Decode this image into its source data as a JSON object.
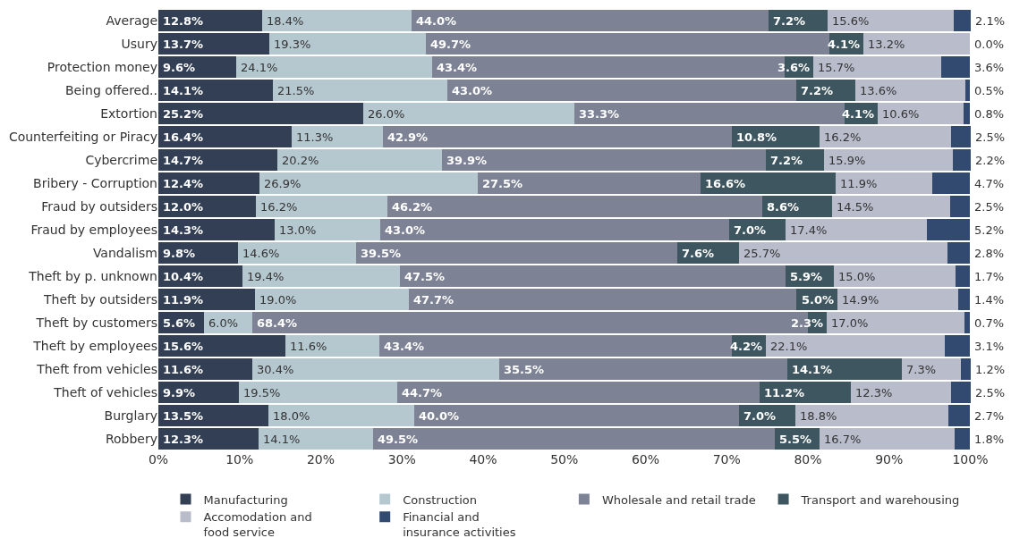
{
  "chart_data": {
    "type": "bar",
    "orientation": "horizontal",
    "stacked": true,
    "categories": [
      "Average",
      "Usury",
      "Protection money",
      "Being offered..",
      "Extortion",
      "Counterfeiting or Piracy",
      "Cybercrime",
      "Bribery - Corruption",
      "Fraud by outsiders",
      "Fraud by employees",
      "Vandalism",
      "Theft by p. unknown",
      "Theft by outsiders",
      "Theft by customers",
      "Theft by employees",
      "Theft from vehicles",
      "Theft of vehicles",
      "Burglary",
      "Robbery"
    ],
    "series": [
      {
        "name": "Manufacturing",
        "color": "#333f55",
        "values": [
          12.8,
          13.7,
          9.6,
          14.1,
          25.2,
          16.4,
          14.7,
          12.4,
          12.0,
          14.3,
          9.8,
          10.4,
          11.9,
          5.6,
          15.6,
          11.6,
          9.9,
          13.5,
          12.3
        ],
        "value_labels": [
          "12.8%",
          "13.7%",
          "9.6%",
          "14.1%",
          "25.2%",
          "16.4%",
          "14.7%",
          "12.4%",
          "12.0%",
          "14.3%",
          "9.8%",
          "10.4%",
          "11.9%",
          "5.6%",
          "15.6%",
          "11.6%",
          "9.9%",
          "13.5%",
          "12.3%"
        ]
      },
      {
        "name": "Construction",
        "color": "#b5c7cf",
        "values": [
          18.4,
          19.3,
          24.1,
          21.5,
          26.0,
          11.3,
          20.2,
          26.9,
          16.2,
          13.0,
          14.6,
          19.4,
          19.0,
          6.0,
          11.6,
          30.4,
          19.5,
          18.0,
          14.1
        ],
        "value_labels": [
          "18.4%",
          "19.3%",
          "24.1%",
          "21.5%",
          "26.0%",
          "11.3%",
          "20.2%",
          "26.9%",
          "16.2%",
          "13.0%",
          "14.6%",
          "19.4%",
          "19.0%",
          "6.0%",
          "11.6%",
          "30.4%",
          "19.5%",
          "18.0%",
          "14.1%"
        ]
      },
      {
        "name": "Wholesale and retail trade",
        "color": "#7d8294",
        "values": [
          44.0,
          49.7,
          43.4,
          43.0,
          33.3,
          42.9,
          39.9,
          27.5,
          46.2,
          43.0,
          39.5,
          47.5,
          47.7,
          68.4,
          43.4,
          35.5,
          44.7,
          40.0,
          49.5
        ],
        "value_labels": [
          "44.0%",
          "49.7%",
          "43.4%",
          "43.0%",
          "33.3%",
          "42.9%",
          "39.9%",
          "27.5%",
          "46.2%",
          "43.0%",
          "39.5%",
          "47.5%",
          "47.7%",
          "68.4%",
          "43.4%",
          "35.5%",
          "44.7%",
          "40.0%",
          "49.5%"
        ]
      },
      {
        "name": "Transport and warehousing",
        "color": "#3e565f",
        "values": [
          7.2,
          4.1,
          3.6,
          7.2,
          4.1,
          10.8,
          7.2,
          16.6,
          8.6,
          7.0,
          7.6,
          5.9,
          5.0,
          2.3,
          4.2,
          14.1,
          11.2,
          7.0,
          5.5
        ],
        "value_labels": [
          "7.2%",
          "4.1%",
          "3.6%",
          "7.2%",
          "4.1%",
          "10.8%",
          "7.2%",
          "16.6%",
          "8.6%",
          "7.0%",
          "7.6%",
          "5.9%",
          "5.0%",
          "2.3%",
          "4.2%",
          "14.1%",
          "11.2%",
          "7.0%",
          "5.5%"
        ]
      },
      {
        "name": "Accomodation and food service",
        "color": "#b9bccb",
        "values": [
          15.6,
          13.2,
          15.7,
          13.6,
          10.6,
          16.2,
          15.9,
          11.9,
          14.5,
          17.4,
          25.7,
          15.0,
          14.9,
          17.0,
          22.1,
          7.3,
          12.3,
          18.8,
          16.7
        ],
        "value_labels": [
          "15.6%",
          "13.2%",
          "15.7%",
          "13.6%",
          "10.6%",
          "16.2%",
          "15.9%",
          "11.9%",
          "14.5%",
          "17.4%",
          "25.7%",
          "15.0%",
          "14.9%",
          "17.0%",
          "22.1%",
          "7.3%",
          "12.3%",
          "18.8%",
          "16.7%"
        ]
      },
      {
        "name": "Financial and insurance activities",
        "color": "#334a70",
        "values": [
          2.1,
          0.0,
          3.6,
          0.5,
          0.8,
          2.5,
          2.2,
          4.7,
          2.5,
          5.2,
          2.8,
          1.7,
          1.4,
          0.7,
          3.1,
          1.2,
          2.5,
          2.7,
          1.8
        ],
        "value_labels": [
          "2.1%",
          "0.0%",
          "3.6%",
          "0.5%",
          "0.8%",
          "2.5%",
          "2.2%",
          "4.7%",
          "2.5%",
          "5.2%",
          "2.8%",
          "1.7%",
          "1.4%",
          "0.7%",
          "3.1%",
          "1.2%",
          "2.5%",
          "2.7%",
          "1.8%"
        ]
      }
    ],
    "xlim": [
      0,
      100.5
    ],
    "xticks": [
      {
        "value": 0,
        "label": "0%"
      },
      {
        "value": 10,
        "label": "10%"
      },
      {
        "value": 20,
        "label": "20%"
      },
      {
        "value": 30,
        "label": "30%"
      },
      {
        "value": 40,
        "label": "40%"
      },
      {
        "value": 50,
        "label": "50%"
      },
      {
        "value": 60,
        "label": "60%"
      },
      {
        "value": 70,
        "label": "70%"
      },
      {
        "value": 80,
        "label": "80%"
      },
      {
        "value": 90,
        "label": "90%"
      },
      {
        "value": 100,
        "label": "100%"
      }
    ],
    "legend": "bottom"
  }
}
